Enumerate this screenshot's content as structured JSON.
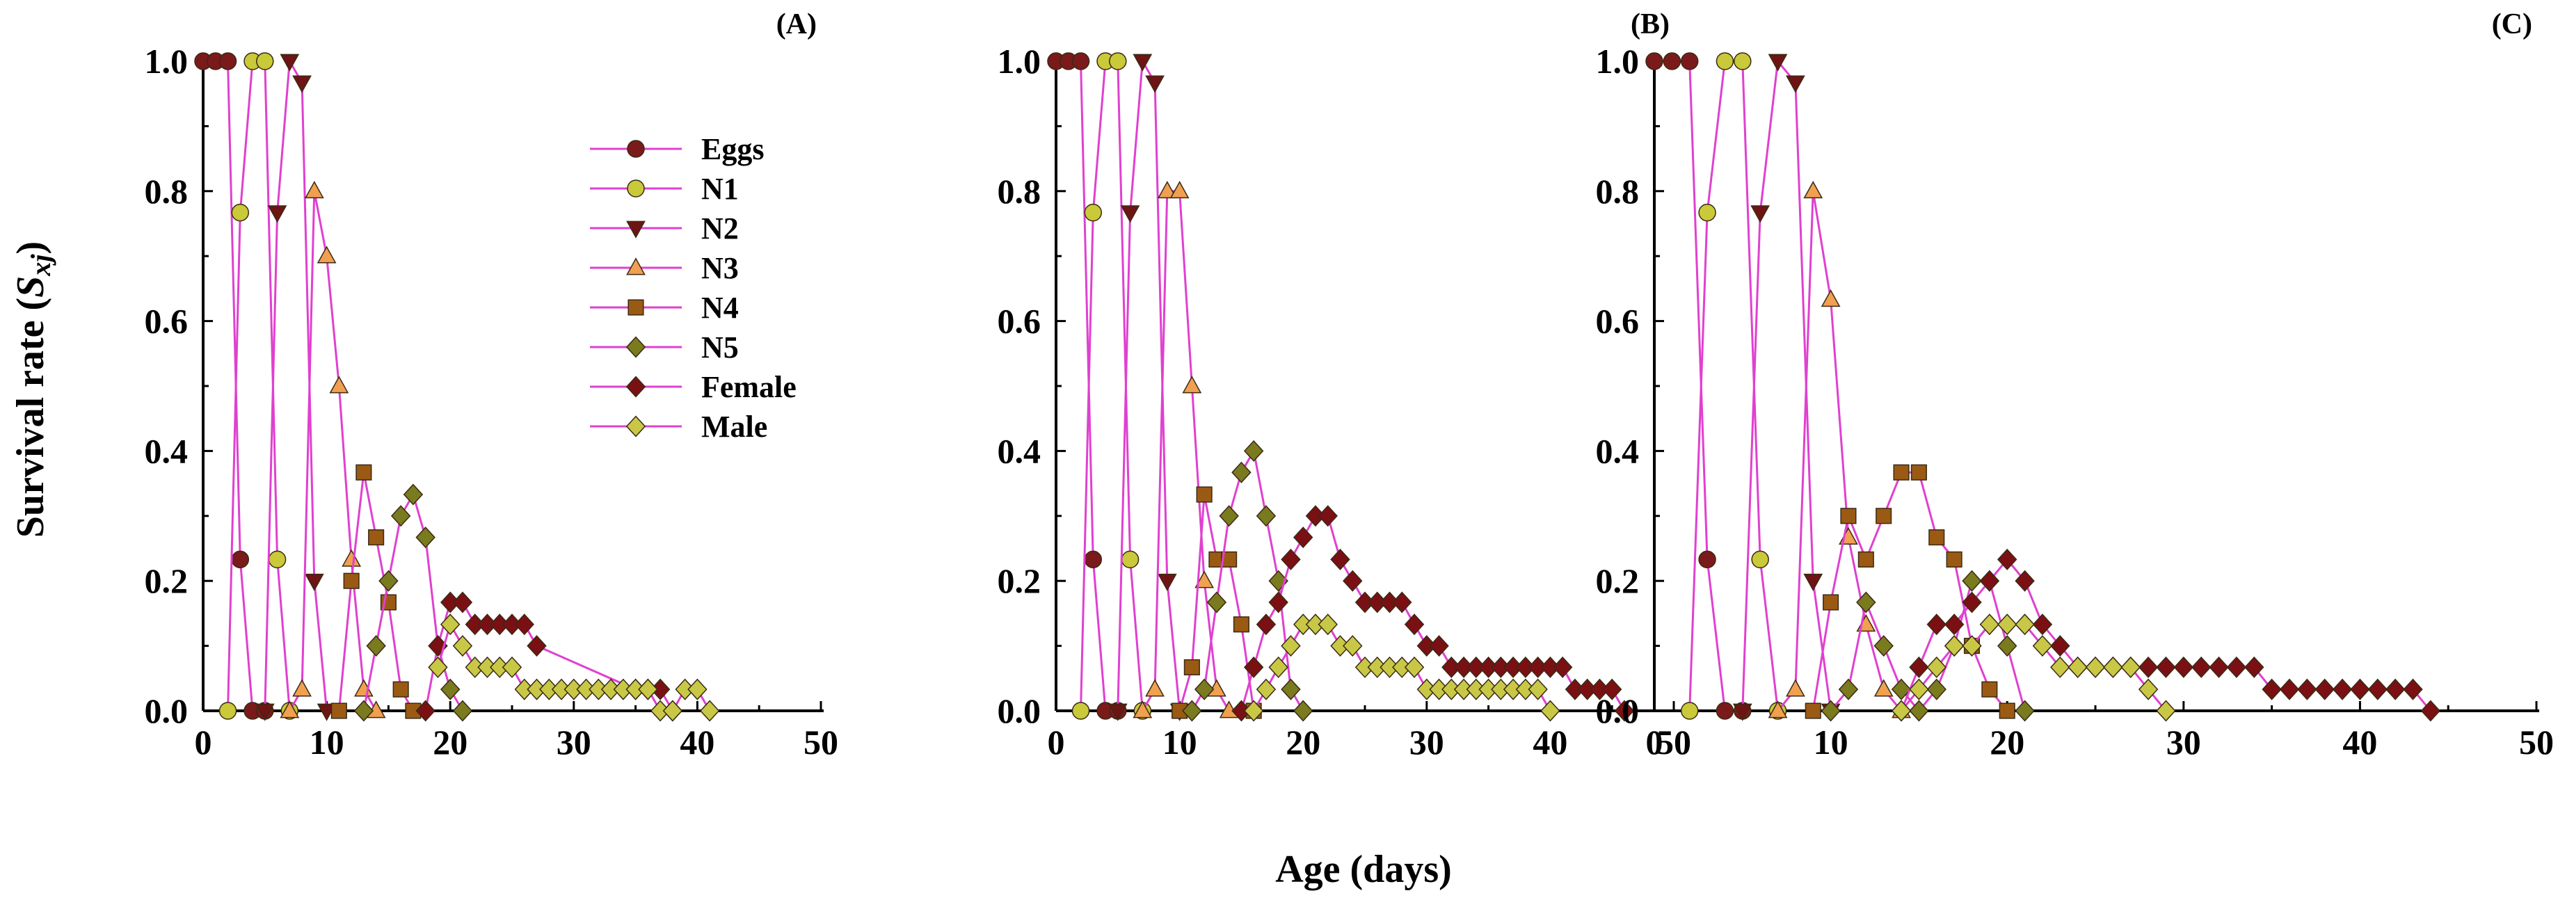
{
  "figure": {
    "xlabel": "Age (days)",
    "ylabel_main": "Survival rate (",
    "ylabel_sym": "S",
    "ylabel_sub": "xj",
    "ylabel_close": ")"
  },
  "legend": {
    "entries": [
      {
        "label": "Eggs",
        "marker": "circle",
        "fill": "#7a1a1a"
      },
      {
        "label": "N1",
        "marker": "circle",
        "fill": "#c9c93a"
      },
      {
        "label": "N2",
        "marker": "triangle-down",
        "fill": "#6e1414"
      },
      {
        "label": "N3",
        "marker": "triangle-up",
        "fill": "#f0a050"
      },
      {
        "label": "N4",
        "marker": "square",
        "fill": "#9a5a14"
      },
      {
        "label": "N5",
        "marker": "diamond",
        "fill": "#7a7a1e"
      },
      {
        "label": "Female",
        "marker": "diamond",
        "fill": "#7a1014"
      },
      {
        "label": "Male",
        "marker": "diamond",
        "fill": "#c8c846"
      }
    ]
  },
  "colors": {
    "line": "#e040d0",
    "axis": "#000000"
  },
  "chart_data": [
    {
      "type": "line",
      "panel": "(A)",
      "xlim": [
        0,
        50
      ],
      "ylim": [
        0,
        1.0
      ],
      "xticks": [
        "0",
        "10",
        "20",
        "30",
        "40",
        "50"
      ],
      "yticks": [
        "0.0",
        "0.2",
        "0.4",
        "0.6",
        "0.8",
        "1.0"
      ],
      "xlabel": "Age (days)",
      "ylabel": "Survival rate (Sxj)",
      "series": [
        {
          "name": "Eggs",
          "x": [
            0,
            1,
            2,
            3,
            4,
            5
          ],
          "y": [
            1.0,
            1.0,
            1.0,
            0.233,
            0,
            0
          ]
        },
        {
          "name": "N1",
          "x": [
            2,
            3,
            4,
            5,
            6,
            7
          ],
          "y": [
            0,
            0.767,
            1.0,
            1.0,
            0.233,
            0
          ]
        },
        {
          "name": "N2",
          "x": [
            5,
            6,
            7,
            8,
            9,
            10
          ],
          "y": [
            0,
            0.767,
            1.0,
            0.967,
            0.2,
            0
          ]
        },
        {
          "name": "N3",
          "x": [
            7,
            8,
            9,
            10,
            11,
            12,
            13,
            14
          ],
          "y": [
            0,
            0.033,
            0.8,
            0.7,
            0.5,
            0.233,
            0.033,
            0
          ]
        },
        {
          "name": "N4",
          "x": [
            11,
            12,
            13,
            14,
            15,
            16,
            17
          ],
          "y": [
            0,
            0.2,
            0.367,
            0.267,
            0.167,
            0.033,
            0
          ]
        },
        {
          "name": "N5",
          "x": [
            13,
            14,
            15,
            16,
            17,
            18,
            19,
            20,
            21
          ],
          "y": [
            0,
            0.1,
            0.2,
            0.3,
            0.333,
            0.267,
            0.1,
            0.033,
            0
          ]
        },
        {
          "name": "Female",
          "x": [
            18,
            19,
            20,
            21,
            22,
            23,
            24,
            25,
            26,
            27,
            35,
            36,
            37,
            38
          ],
          "y": [
            0,
            0.1,
            0.167,
            0.167,
            0.133,
            0.133,
            0.133,
            0.133,
            0.133,
            0.1,
            0.033,
            0.033,
            0.033,
            0
          ]
        },
        {
          "name": "Male",
          "x": [
            19,
            20,
            21,
            22,
            23,
            24,
            25,
            26,
            27,
            28,
            29,
            30,
            31,
            32,
            33,
            34,
            35,
            36,
            37,
            38,
            39,
            40,
            41
          ],
          "y": [
            0.067,
            0.133,
            0.1,
            0.067,
            0.067,
            0.067,
            0.067,
            0.033,
            0.033,
            0.033,
            0.033,
            0.033,
            0.033,
            0.033,
            0.033,
            0.033,
            0.033,
            0.033,
            0,
            0,
            0.033,
            0.033,
            0
          ]
        }
      ]
    },
    {
      "type": "line",
      "panel": "(B)",
      "xlim": [
        0,
        50
      ],
      "ylim": [
        0,
        1.0
      ],
      "xticks": [
        "0",
        "10",
        "20",
        "30",
        "40",
        "50"
      ],
      "yticks": [
        "0.0",
        "0.2",
        "0.4",
        "0.6",
        "0.8",
        "1.0"
      ],
      "series": [
        {
          "name": "Eggs",
          "x": [
            0,
            1,
            2,
            3,
            4,
            5
          ],
          "y": [
            1.0,
            1.0,
            1.0,
            0.233,
            0,
            0
          ]
        },
        {
          "name": "N1",
          "x": [
            2,
            3,
            4,
            5,
            6,
            7
          ],
          "y": [
            0,
            0.767,
            1.0,
            1.0,
            0.233,
            0
          ]
        },
        {
          "name": "N2",
          "x": [
            5,
            6,
            7,
            8,
            9,
            10
          ],
          "y": [
            0,
            0.767,
            1.0,
            0.967,
            0.2,
            0
          ]
        },
        {
          "name": "N3",
          "x": [
            7,
            8,
            9,
            10,
            11,
            12,
            13,
            14
          ],
          "y": [
            0,
            0.033,
            0.8,
            0.8,
            0.5,
            0.2,
            0.033,
            0
          ]
        },
        {
          "name": "N4",
          "x": [
            10,
            11,
            12,
            13,
            14,
            15,
            16
          ],
          "y": [
            0,
            0.067,
            0.333,
            0.233,
            0.233,
            0.133,
            0
          ]
        },
        {
          "name": "N5",
          "x": [
            11,
            12,
            13,
            14,
            15,
            16,
            17,
            18,
            19,
            20
          ],
          "y": [
            0,
            0.033,
            0.167,
            0.3,
            0.367,
            0.4,
            0.3,
            0.2,
            0.033,
            0
          ]
        },
        {
          "name": "Female",
          "x": [
            15,
            16,
            17,
            18,
            19,
            20,
            21,
            22,
            23,
            24,
            25,
            26,
            27,
            28,
            29,
            30,
            31,
            32,
            33,
            34,
            35,
            36,
            37,
            38,
            39,
            40,
            41,
            42,
            43,
            44,
            45,
            46
          ],
          "y": [
            0,
            0.067,
            0.133,
            0.167,
            0.233,
            0.267,
            0.3,
            0.3,
            0.233,
            0.2,
            0.167,
            0.167,
            0.167,
            0.167,
            0.133,
            0.1,
            0.1,
            0.067,
            0.067,
            0.067,
            0.067,
            0.067,
            0.067,
            0.067,
            0.067,
            0.067,
            0.067,
            0.033,
            0.033,
            0.033,
            0.033,
            0
          ]
        },
        {
          "name": "Male",
          "x": [
            16,
            17,
            18,
            19,
            20,
            21,
            22,
            23,
            24,
            25,
            26,
            27,
            28,
            29,
            30,
            31,
            32,
            33,
            34,
            35,
            36,
            37,
            38,
            39,
            40
          ],
          "y": [
            0,
            0.033,
            0.067,
            0.1,
            0.133,
            0.133,
            0.133,
            0.1,
            0.1,
            0.067,
            0.067,
            0.067,
            0.067,
            0.067,
            0.033,
            0.033,
            0.033,
            0.033,
            0.033,
            0.033,
            0.033,
            0.033,
            0.033,
            0.033,
            0
          ]
        }
      ]
    },
    {
      "type": "line",
      "panel": "(C)",
      "xlim": [
        0,
        50
      ],
      "ylim": [
        0,
        1.0
      ],
      "xticks": [
        "0",
        "10",
        "20",
        "30",
        "40",
        "50"
      ],
      "yticks": [
        "0.0",
        "0.2",
        "0.4",
        "0.6",
        "0.8",
        "1.0"
      ],
      "series": [
        {
          "name": "Eggs",
          "x": [
            0,
            1,
            2,
            3,
            4,
            5
          ],
          "y": [
            1.0,
            1.0,
            1.0,
            0.233,
            0,
            0
          ]
        },
        {
          "name": "N1",
          "x": [
            2,
            3,
            4,
            5,
            6,
            7
          ],
          "y": [
            0,
            0.767,
            1.0,
            1.0,
            0.233,
            0
          ]
        },
        {
          "name": "N2",
          "x": [
            5,
            6,
            7,
            8,
            9,
            10
          ],
          "y": [
            0,
            0.767,
            1.0,
            0.967,
            0.2,
            0
          ]
        },
        {
          "name": "N3",
          "x": [
            7,
            8,
            9,
            10,
            11,
            12,
            13,
            14
          ],
          "y": [
            0,
            0.033,
            0.8,
            0.633,
            0.267,
            0.133,
            0.033,
            0
          ]
        },
        {
          "name": "N4",
          "x": [
            9,
            10,
            11,
            12,
            13,
            14,
            15,
            16,
            17,
            18,
            19,
            20
          ],
          "y": [
            0,
            0.167,
            0.3,
            0.233,
            0.3,
            0.367,
            0.367,
            0.267,
            0.233,
            0.1,
            0.033,
            0
          ]
        },
        {
          "name": "N5",
          "x": [
            10,
            11,
            12,
            13,
            14,
            15,
            16,
            17,
            18,
            19,
            20,
            21
          ],
          "y": [
            0,
            0.033,
            0.167,
            0.1,
            0.033,
            0,
            0.033,
            0.1,
            0.2,
            0.2,
            0.1,
            0
          ]
        },
        {
          "name": "Female",
          "x": [
            14,
            15,
            16,
            17,
            18,
            19,
            20,
            21,
            22,
            23,
            24,
            25,
            26,
            27,
            28,
            29,
            30,
            31,
            32,
            33,
            34,
            35,
            36,
            37,
            38,
            39,
            40,
            41,
            42,
            43,
            44
          ],
          "y": [
            0,
            0.067,
            0.133,
            0.133,
            0.167,
            0.2,
            0.233,
            0.2,
            0.133,
            0.1,
            0.067,
            0.067,
            0.067,
            0.067,
            0.067,
            0.067,
            0.067,
            0.067,
            0.067,
            0.067,
            0.067,
            0.033,
            0.033,
            0.033,
            0.033,
            0.033,
            0.033,
            0.033,
            0.033,
            0.033,
            0
          ]
        },
        {
          "name": "Male",
          "x": [
            14,
            15,
            16,
            17,
            18,
            19,
            20,
            21,
            22,
            23,
            24,
            25,
            26,
            27,
            28,
            29
          ],
          "y": [
            0,
            0.033,
            0.067,
            0.1,
            0.1,
            0.133,
            0.133,
            0.133,
            0.1,
            0.067,
            0.067,
            0.067,
            0.067,
            0.067,
            0.033,
            0
          ]
        }
      ]
    }
  ]
}
